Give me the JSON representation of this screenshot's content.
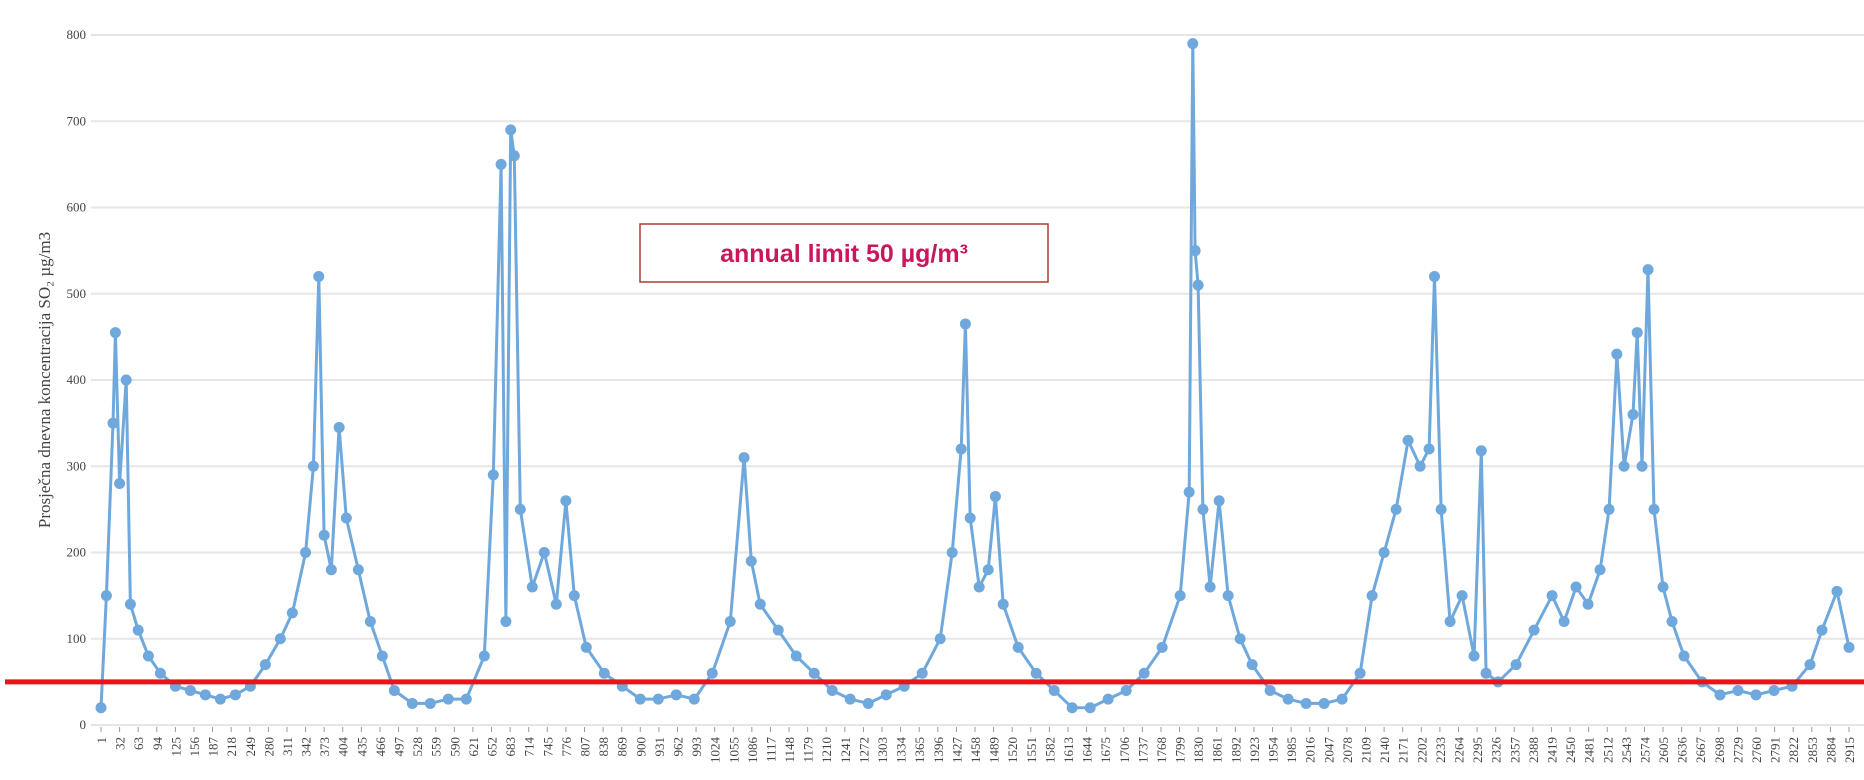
{
  "chart_data": {
    "type": "line",
    "y_label": "Prosječna dnevna koncentracija SO₂ µg/m3",
    "annotation": "annual limit 50 µg/m³",
    "reference_line": {
      "value": 50,
      "color": "#e8141c"
    },
    "color": "#6fa8dc",
    "grid": true,
    "xlim": [
      1,
      2915
    ],
    "ylim": [
      0,
      800
    ],
    "yticks": [
      0,
      100,
      200,
      300,
      400,
      500,
      600,
      700,
      800
    ],
    "xticks": [
      1,
      32,
      63,
      94,
      125,
      156,
      187,
      218,
      249,
      280,
      311,
      342,
      373,
      404,
      435,
      466,
      497,
      528,
      559,
      590,
      621,
      652,
      683,
      714,
      745,
      776,
      807,
      838,
      869,
      900,
      931,
      962,
      993,
      1024,
      1055,
      1086,
      1117,
      1148,
      1179,
      1210,
      1241,
      1272,
      1303,
      1334,
      1365,
      1396,
      1427,
      1458,
      1489,
      1520,
      1551,
      1582,
      1613,
      1644,
      1675,
      1706,
      1737,
      1768,
      1799,
      1830,
      1861,
      1892,
      1923,
      1954,
      1985,
      2016,
      2047,
      2078,
      2109,
      2140,
      2171,
      2202,
      2233,
      2264,
      2295,
      2326,
      2357,
      2388,
      2419,
      2450,
      2481,
      2512,
      2543,
      2574,
      2605,
      2636,
      2667,
      2698,
      2729,
      2760,
      2791,
      2822,
      2853,
      2884,
      2915
    ],
    "x": [
      1,
      10,
      21,
      25,
      32,
      43,
      50,
      63,
      80,
      100,
      125,
      150,
      175,
      200,
      225,
      250,
      275,
      300,
      320,
      342,
      355,
      364,
      373,
      385,
      398,
      410,
      430,
      450,
      470,
      490,
      520,
      550,
      580,
      610,
      640,
      655,
      668,
      676,
      684,
      690,
      700,
      720,
      740,
      760,
      776,
      790,
      810,
      840,
      870,
      900,
      930,
      960,
      990,
      1020,
      1050,
      1073,
      1085,
      1100,
      1130,
      1160,
      1190,
      1220,
      1250,
      1280,
      1310,
      1340,
      1370,
      1400,
      1420,
      1435,
      1442,
      1450,
      1465,
      1480,
      1492,
      1505,
      1530,
      1560,
      1590,
      1620,
      1650,
      1680,
      1710,
      1740,
      1770,
      1800,
      1815,
      1821,
      1825,
      1830,
      1838,
      1850,
      1865,
      1880,
      1900,
      1920,
      1950,
      1980,
      2010,
      2040,
      2070,
      2100,
      2120,
      2140,
      2160,
      2180,
      2200,
      2215,
      2224,
      2235,
      2250,
      2270,
      2290,
      2302,
      2310,
      2330,
      2360,
      2390,
      2420,
      2440,
      2460,
      2480,
      2500,
      2515,
      2528,
      2540,
      2555,
      2562,
      2570,
      2580,
      2590,
      2605,
      2620,
      2640,
      2670,
      2700,
      2730,
      2760,
      2790,
      2820,
      2850,
      2870,
      2895,
      2915
    ],
    "values": [
      20,
      150,
      350,
      455,
      280,
      400,
      140,
      110,
      80,
      60,
      45,
      40,
      35,
      30,
      35,
      45,
      70,
      100,
      130,
      200,
      300,
      520,
      220,
      180,
      345,
      240,
      180,
      120,
      80,
      40,
      25,
      25,
      30,
      30,
      80,
      290,
      650,
      120,
      690,
      660,
      250,
      160,
      200,
      140,
      260,
      150,
      90,
      60,
      45,
      30,
      30,
      35,
      30,
      60,
      120,
      310,
      190,
      140,
      110,
      80,
      60,
      40,
      30,
      25,
      35,
      45,
      60,
      100,
      200,
      320,
      465,
      240,
      160,
      180,
      265,
      140,
      90,
      60,
      40,
      20,
      20,
      30,
      40,
      60,
      90,
      150,
      270,
      790,
      550,
      510,
      250,
      160,
      260,
      150,
      100,
      70,
      40,
      30,
      25,
      25,
      30,
      60,
      150,
      200,
      250,
      330,
      300,
      320,
      520,
      250,
      120,
      150,
      80,
      318,
      60,
      50,
      70,
      110,
      150,
      120,
      160,
      140,
      180,
      250,
      430,
      300,
      360,
      455,
      300,
      528,
      250,
      160,
      120,
      80,
      50,
      35,
      40,
      35,
      40,
      45,
      70,
      110,
      155,
      90
    ]
  }
}
